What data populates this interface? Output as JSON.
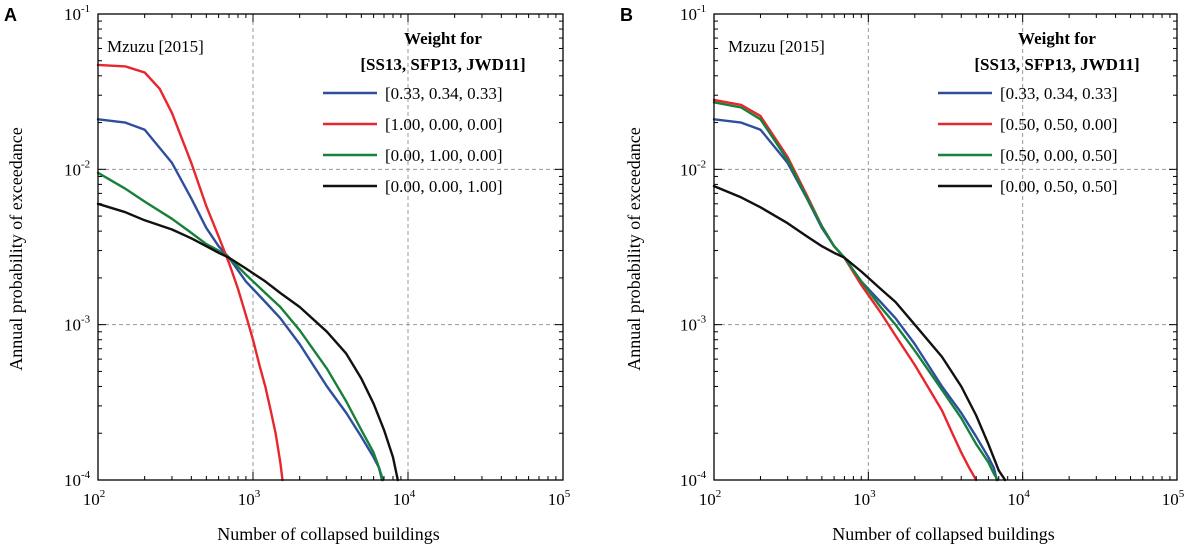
{
  "chart_data": [
    {
      "panel": "A",
      "type": "line",
      "location_label": "Mzuzu [2015]",
      "xlabel": "Number of collapsed buildings",
      "ylabel": "Annual probability of exceedance",
      "xscale": "log",
      "yscale": "log",
      "xlim": [
        100,
        100000
      ],
      "ylim": [
        0.0001,
        0.1
      ],
      "x_ticks": [
        {
          "base": "10",
          "exp": "2"
        },
        {
          "base": "10",
          "exp": "3"
        },
        {
          "base": "10",
          "exp": "4"
        },
        {
          "base": "10",
          "exp": "5"
        }
      ],
      "y_ticks": [
        {
          "base": "10",
          "exp": "-1"
        },
        {
          "base": "10",
          "exp": "-2"
        },
        {
          "base": "10",
          "exp": "-3"
        },
        {
          "base": "10",
          "exp": "-4"
        }
      ],
      "grid": true,
      "legend_title": [
        "Weight for",
        "[SS13, SFP13, JWD11]"
      ],
      "legend_position": "top-right",
      "series": [
        {
          "name": "[0.33, 0.34, 0.33]",
          "color": "#2e4f9e",
          "x": [
            100,
            150,
            200,
            300,
            400,
            500,
            600,
            700,
            900,
            1200,
            1500,
            2000,
            3000,
            4000,
            5000,
            6000,
            6500,
            6800
          ],
          "y": [
            0.021,
            0.02,
            0.018,
            0.011,
            0.0065,
            0.0042,
            0.0032,
            0.0027,
            0.0019,
            0.0014,
            0.0011,
            0.00075,
            0.0004,
            0.00027,
            0.00019,
            0.00014,
            0.00012,
            0.0001
          ]
        },
        {
          "name": "[1.00, 0.00, 0.00]",
          "color": "#e8262d",
          "x": [
            100,
            150,
            200,
            250,
            300,
            400,
            500,
            600,
            700,
            800,
            900,
            1000,
            1100,
            1200,
            1300,
            1400,
            1500,
            1550
          ],
          "y": [
            0.047,
            0.046,
            0.042,
            0.033,
            0.023,
            0.011,
            0.0058,
            0.0037,
            0.0025,
            0.0017,
            0.00115,
            0.0008,
            0.00055,
            0.0004,
            0.00028,
            0.0002,
            0.00013,
            0.0001
          ]
        },
        {
          "name": "[0.00, 1.00, 0.00]",
          "color": "#17803a",
          "x": [
            100,
            150,
            200,
            300,
            400,
            500,
            600,
            700,
            900,
            1200,
            1500,
            2000,
            3000,
            4000,
            5000,
            6000,
            6500,
            6900
          ],
          "y": [
            0.0095,
            0.0075,
            0.0062,
            0.0048,
            0.0039,
            0.0033,
            0.003,
            0.0027,
            0.0021,
            0.0016,
            0.0013,
            0.00092,
            0.00052,
            0.00032,
            0.00021,
            0.00015,
            0.00012,
            0.0001
          ]
        },
        {
          "name": "[0.00, 0.00, 1.00]",
          "color": "#111111",
          "x": [
            100,
            150,
            200,
            300,
            400,
            500,
            600,
            700,
            900,
            1200,
            1500,
            2000,
            3000,
            4000,
            5000,
            6000,
            7000,
            8000,
            8600
          ],
          "y": [
            0.006,
            0.0053,
            0.0047,
            0.0041,
            0.0036,
            0.0032,
            0.0029,
            0.0027,
            0.0023,
            0.0019,
            0.0016,
            0.0013,
            0.0009,
            0.00065,
            0.00045,
            0.00031,
            0.00021,
            0.00014,
            0.0001
          ]
        }
      ]
    },
    {
      "panel": "B",
      "type": "line",
      "location_label": "Mzuzu [2015]",
      "xlabel": "Number of collapsed buildings",
      "ylabel": "Annual probability of exceedance",
      "xscale": "log",
      "yscale": "log",
      "xlim": [
        100,
        100000
      ],
      "ylim": [
        0.0001,
        0.1
      ],
      "x_ticks": [
        {
          "base": "10",
          "exp": "2"
        },
        {
          "base": "10",
          "exp": "3"
        },
        {
          "base": "10",
          "exp": "4"
        },
        {
          "base": "10",
          "exp": "5"
        }
      ],
      "y_ticks": [
        {
          "base": "10",
          "exp": "-1"
        },
        {
          "base": "10",
          "exp": "-2"
        },
        {
          "base": "10",
          "exp": "-3"
        },
        {
          "base": "10",
          "exp": "-4"
        }
      ],
      "grid": true,
      "legend_title": [
        "Weight for",
        "[SS13, SFP13, JWD11]"
      ],
      "legend_position": "top-right",
      "series": [
        {
          "name": "[0.33, 0.34, 0.33]",
          "color": "#2e4f9e",
          "x": [
            100,
            150,
            200,
            300,
            400,
            500,
            600,
            700,
            900,
            1200,
            1500,
            2000,
            3000,
            4000,
            5000,
            6000,
            6500,
            6800
          ],
          "y": [
            0.021,
            0.02,
            0.018,
            0.011,
            0.0065,
            0.0042,
            0.0032,
            0.0027,
            0.0019,
            0.0014,
            0.0011,
            0.00075,
            0.0004,
            0.00027,
            0.00019,
            0.00014,
            0.00012,
            0.0001
          ]
        },
        {
          "name": "[0.50, 0.50, 0.00]",
          "color": "#e8262d",
          "x": [
            100,
            150,
            200,
            300,
            400,
            500,
            600,
            700,
            900,
            1200,
            1500,
            2000,
            2500,
            3000,
            3500,
            4000,
            4500,
            5000
          ],
          "y": [
            0.028,
            0.026,
            0.022,
            0.012,
            0.0068,
            0.0043,
            0.0032,
            0.0027,
            0.0018,
            0.0012,
            0.00085,
            0.00055,
            0.00038,
            0.00028,
            0.0002,
            0.00015,
            0.00012,
            0.0001
          ]
        },
        {
          "name": "[0.50, 0.00, 0.50]",
          "color": "#17803a",
          "x": [
            100,
            150,
            200,
            300,
            400,
            500,
            600,
            700,
            900,
            1200,
            1500,
            2000,
            3000,
            4000,
            5000,
            6000,
            6500,
            6900
          ],
          "y": [
            0.027,
            0.025,
            0.021,
            0.0115,
            0.0066,
            0.0043,
            0.0032,
            0.0027,
            0.0019,
            0.0013,
            0.001,
            0.00068,
            0.00038,
            0.00025,
            0.00017,
            0.00013,
            0.00011,
            0.0001
          ]
        },
        {
          "name": "[0.00, 0.50, 0.50]",
          "color": "#111111",
          "x": [
            100,
            150,
            200,
            300,
            400,
            500,
            600,
            700,
            900,
            1200,
            1500,
            2000,
            3000,
            4000,
            5000,
            6000,
            7000,
            7700
          ],
          "y": [
            0.0078,
            0.0066,
            0.0057,
            0.0045,
            0.0037,
            0.0032,
            0.0029,
            0.0027,
            0.0022,
            0.0017,
            0.0014,
            0.001,
            0.00062,
            0.0004,
            0.00026,
            0.00017,
            0.000115,
            0.0001
          ]
        }
      ]
    }
  ],
  "panels": [
    "A",
    "B"
  ]
}
